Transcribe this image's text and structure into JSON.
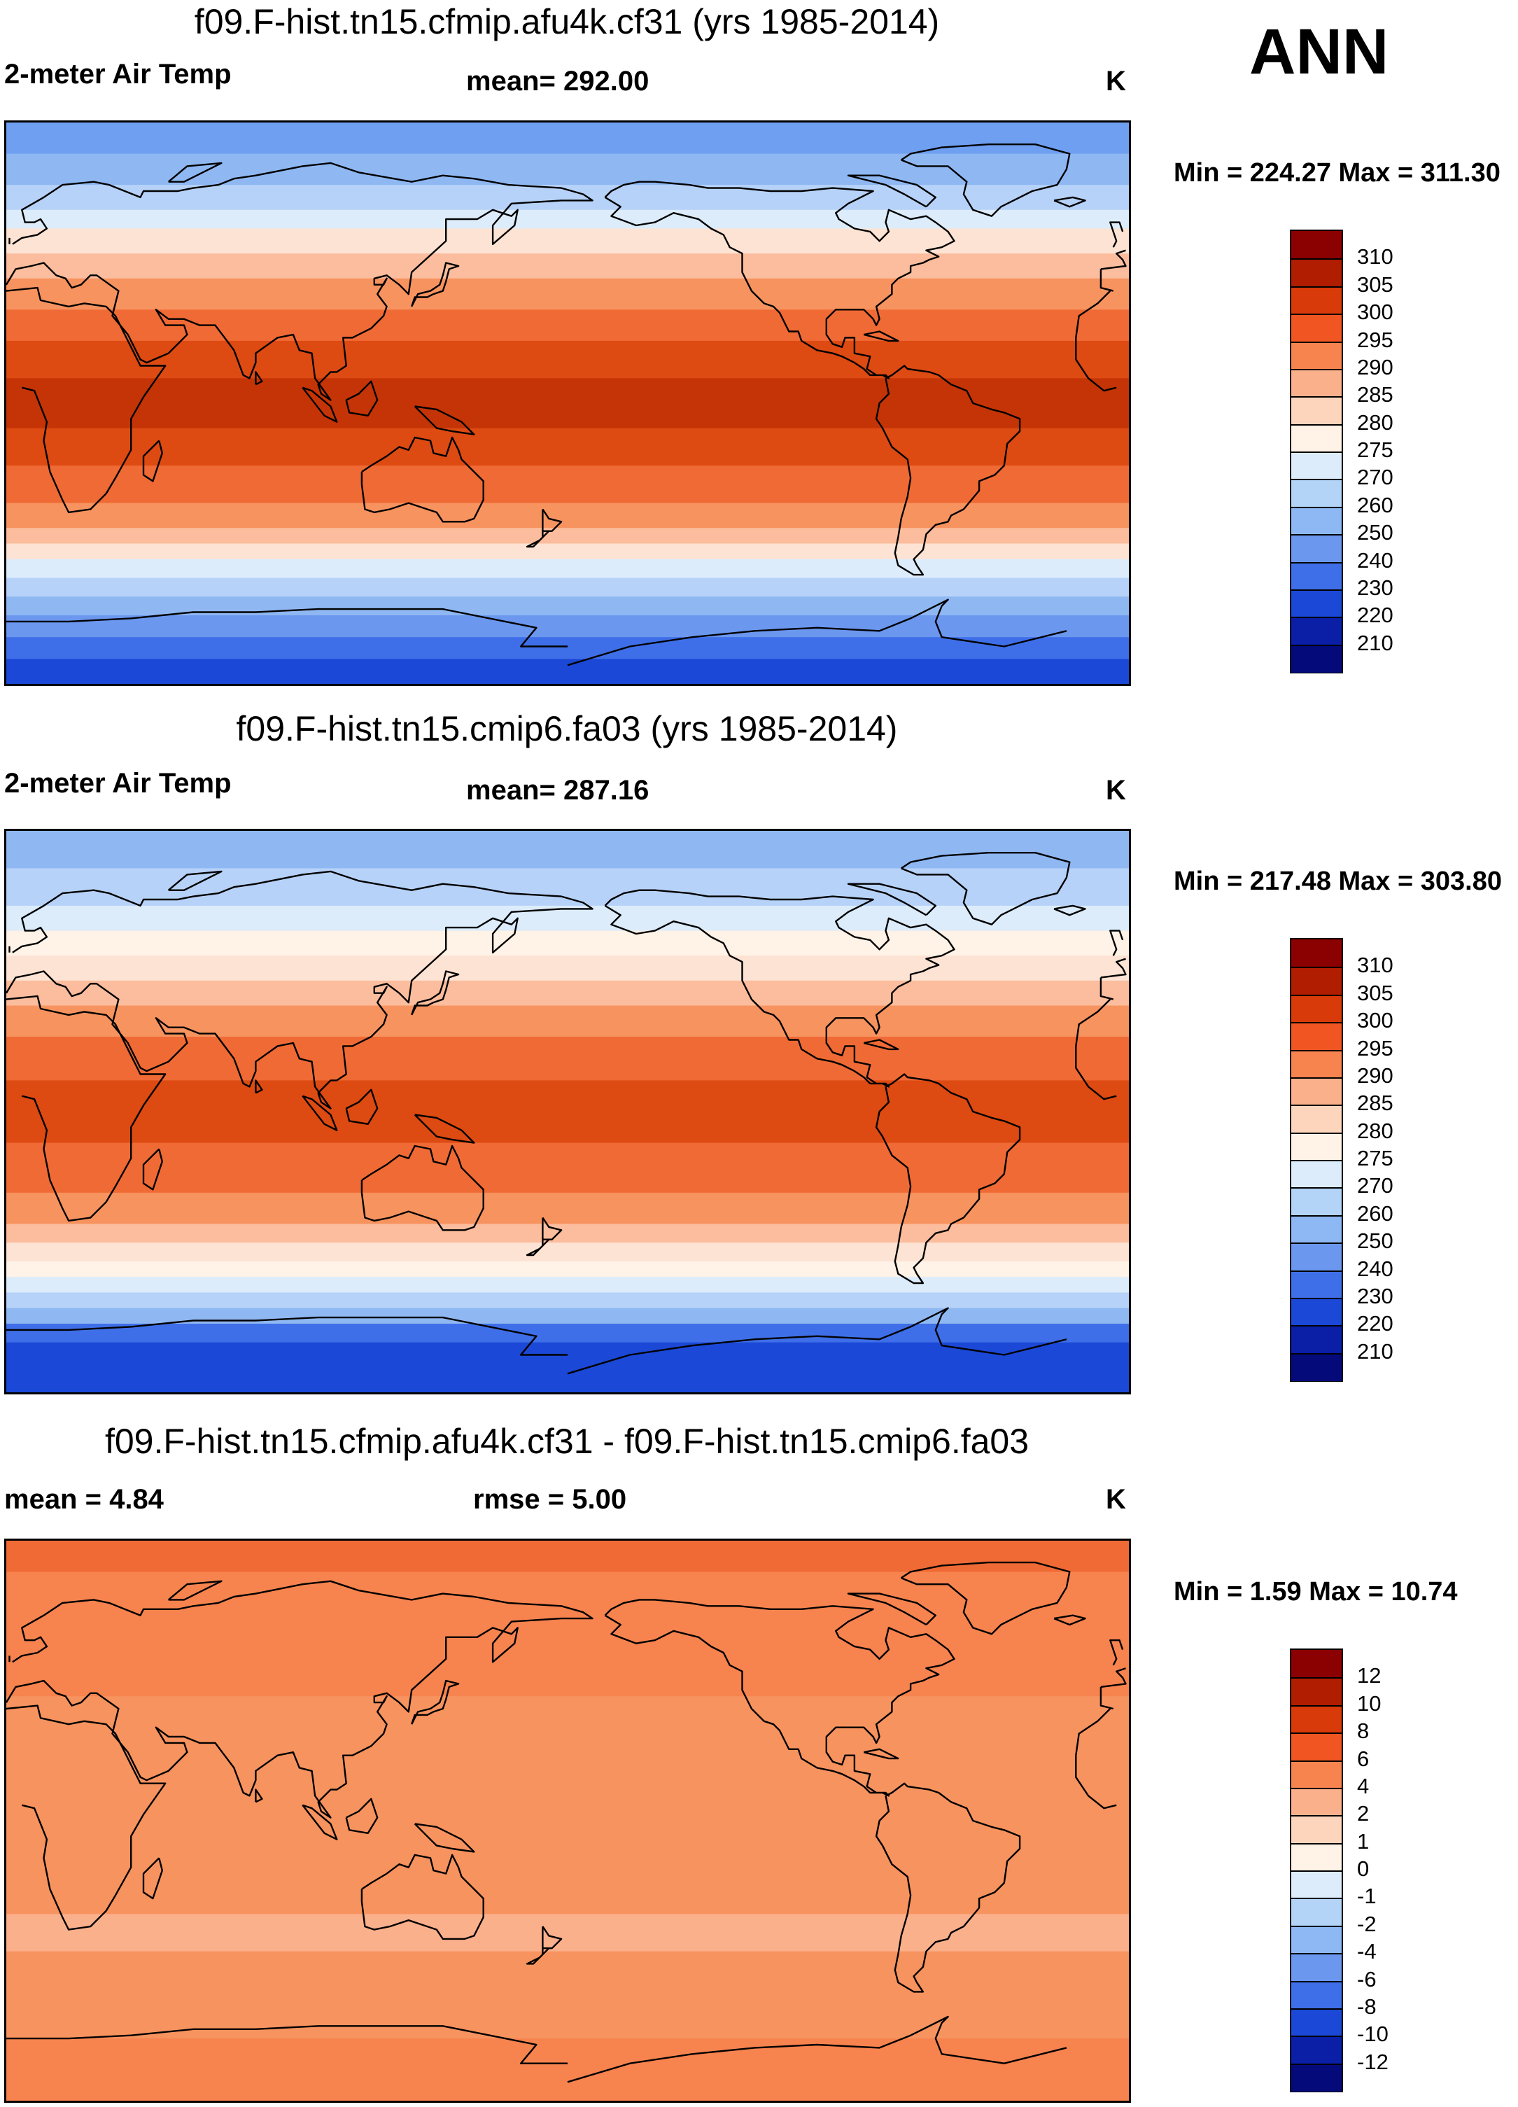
{
  "season": "ANN",
  "panels": [
    {
      "id": "test",
      "title": "f09.F-hist.tn15.cfmip.afu4k.cf31 (yrs 1985-2014)",
      "left_label": "2-meter Air Temp",
      "center_label": "mean= 292.00",
      "units": "K",
      "minmax": "Min = 224.27 Max = 311.30",
      "colorbar": {
        "labels": [
          "310",
          "305",
          "300",
          "295",
          "290",
          "285",
          "280",
          "275",
          "270",
          "260",
          "250",
          "240",
          "230",
          "220",
          "210"
        ],
        "colors": [
          "#8b0000",
          "#b01d00",
          "#d93a0a",
          "#f05522",
          "#f7834f",
          "#fbb08c",
          "#fdd5bd",
          "#fff2e6",
          "#dcecfb",
          "#b3d3f7",
          "#8db8f4",
          "#6b97ef",
          "#3f6fe8",
          "#1b48d6",
          "#0a1ea6",
          "#050a7a"
        ]
      },
      "bands": [
        {
          "lat": 90,
          "color": "#6f9ff0"
        },
        {
          "lat": 80,
          "color": "#8fb8f3"
        },
        {
          "lat": 70,
          "color": "#b7d2f8"
        },
        {
          "lat": 62,
          "color": "#dcecfb"
        },
        {
          "lat": 56,
          "color": "#fde3d3"
        },
        {
          "lat": 48,
          "color": "#fbbd9d"
        },
        {
          "lat": 40,
          "color": "#f7935f"
        },
        {
          "lat": 30,
          "color": "#f06a35"
        },
        {
          "lat": 20,
          "color": "#dd4a12"
        },
        {
          "lat": 8,
          "color": "#c53406"
        },
        {
          "lat": -8,
          "color": "#dd4a12"
        },
        {
          "lat": -20,
          "color": "#f06a35"
        },
        {
          "lat": -32,
          "color": "#f7935f"
        },
        {
          "lat": -40,
          "color": "#fbbd9d"
        },
        {
          "lat": -45,
          "color": "#fde3d3"
        },
        {
          "lat": -50,
          "color": "#dcecfb"
        },
        {
          "lat": -56,
          "color": "#b7d2f8"
        },
        {
          "lat": -62,
          "color": "#8fb8f3"
        },
        {
          "lat": -68,
          "color": "#6b97ef"
        },
        {
          "lat": -75,
          "color": "#3f6fe8"
        },
        {
          "lat": -82,
          "color": "#1b48d6"
        }
      ]
    },
    {
      "id": "control",
      "title": "f09.F-hist.tn15.cmip6.fa03 (yrs 1985-2014)",
      "left_label": "2-meter Air Temp",
      "center_label": "mean= 287.16",
      "units": "K",
      "minmax": "Min = 217.48 Max = 303.80",
      "colorbar": {
        "labels": [
          "310",
          "305",
          "300",
          "295",
          "290",
          "285",
          "280",
          "275",
          "270",
          "260",
          "250",
          "240",
          "230",
          "220",
          "210"
        ],
        "colors": [
          "#8b0000",
          "#b01d00",
          "#d93a0a",
          "#f05522",
          "#f7834f",
          "#fbb08c",
          "#fdd5bd",
          "#fff2e6",
          "#dcecfb",
          "#b3d3f7",
          "#8db8f4",
          "#6b97ef",
          "#3f6fe8",
          "#1b48d6",
          "#0a1ea6",
          "#050a7a"
        ]
      },
      "bands": [
        {
          "lat": 90,
          "color": "#8fb8f3"
        },
        {
          "lat": 78,
          "color": "#b7d2f8"
        },
        {
          "lat": 66,
          "color": "#dcecfb"
        },
        {
          "lat": 58,
          "color": "#fff2e6"
        },
        {
          "lat": 50,
          "color": "#fde3d3"
        },
        {
          "lat": 42,
          "color": "#fbbd9d"
        },
        {
          "lat": 34,
          "color": "#f7935f"
        },
        {
          "lat": 24,
          "color": "#f06a35"
        },
        {
          "lat": 10,
          "color": "#dd4a12"
        },
        {
          "lat": -10,
          "color": "#f06a35"
        },
        {
          "lat": -26,
          "color": "#f7935f"
        },
        {
          "lat": -36,
          "color": "#fbbd9d"
        },
        {
          "lat": -42,
          "color": "#fde3d3"
        },
        {
          "lat": -48,
          "color": "#fff2e6"
        },
        {
          "lat": -53,
          "color": "#dcecfb"
        },
        {
          "lat": -58,
          "color": "#b7d2f8"
        },
        {
          "lat": -63,
          "color": "#8fb8f3"
        },
        {
          "lat": -68,
          "color": "#3f6fe8"
        },
        {
          "lat": -74,
          "color": "#1b48d6"
        }
      ]
    },
    {
      "id": "diff",
      "title": "f09.F-hist.tn15.cfmip.afu4k.cf31 - f09.F-hist.tn15.cmip6.fa03",
      "left_label": "mean =   4.84",
      "center_label": "rmse =   5.00",
      "units": "K",
      "minmax": "Min =   1.59 Max =  10.74",
      "colorbar": {
        "labels": [
          "12",
          "10",
          "8",
          "6",
          "4",
          "2",
          "1",
          "0",
          "-1",
          "-2",
          "-4",
          "-6",
          "-8",
          "-10",
          "-12"
        ],
        "colors": [
          "#8b0000",
          "#b01d00",
          "#d93a0a",
          "#f05522",
          "#f7834f",
          "#fbb08c",
          "#fdd5bd",
          "#fff2e6",
          "#dcecfb",
          "#b3d3f7",
          "#8db8f4",
          "#6b97ef",
          "#3f6fe8",
          "#1b48d6",
          "#0a1ea6",
          "#050a7a"
        ]
      },
      "bands": [
        {
          "lat": 90,
          "color": "#f06a35"
        },
        {
          "lat": 80,
          "color": "#f7834f"
        },
        {
          "lat": 40,
          "color": "#f7935f"
        },
        {
          "lat": -30,
          "color": "#fbb08c"
        },
        {
          "lat": -42,
          "color": "#f7935f"
        },
        {
          "lat": -70,
          "color": "#f7834f"
        }
      ]
    }
  ]
}
